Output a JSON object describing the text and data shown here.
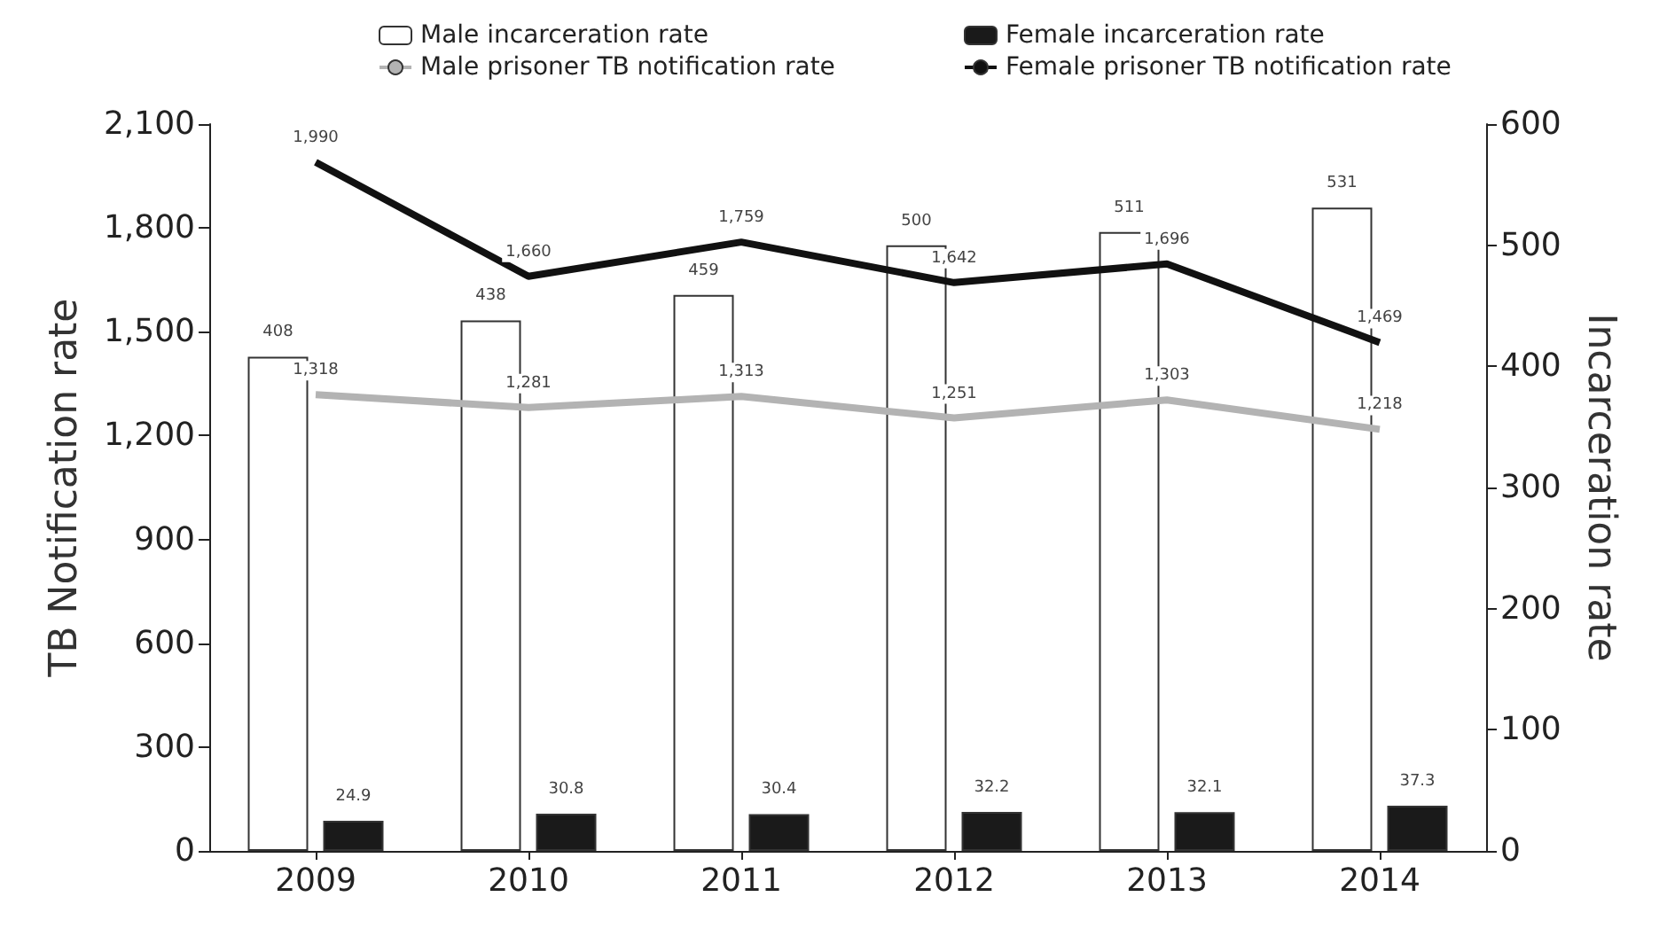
{
  "chart_data": {
    "type": "bar",
    "ylabel": "TB Notification rate",
    "y2label": "Incarceration rate",
    "categories": [
      "2009",
      "2010",
      "2011",
      "2012",
      "2013",
      "2014"
    ],
    "series": [
      {
        "name": "Male incarceration rate",
        "axis": "y2",
        "color": "#ffffff",
        "values": [
          408,
          438,
          459,
          500,
          511,
          531
        ]
      },
      {
        "name": "Female incarceration rate",
        "axis": "y2",
        "color": "#1a1a1a",
        "values": [
          24.9,
          30.8,
          30.4,
          32.2,
          32.1,
          37.3
        ]
      },
      {
        "name": "Male prisoner TB notification rate",
        "type": "line",
        "color": "#b3b3b3",
        "values": [
          1318,
          1281,
          1313,
          1251,
          1303,
          1218
        ],
        "value_labels": [
          "1,318",
          "1,281",
          "1,313",
          "1,251",
          "1,303",
          "1,218"
        ]
      },
      {
        "name": "Female prisoner TB notification rate",
        "type": "line",
        "color": "#111111",
        "values": [
          1990,
          1660,
          1759,
          1642,
          1696,
          1469
        ],
        "value_labels": [
          "1,990",
          "1,660",
          "1,759",
          "1,642",
          "1,696",
          "1,469"
        ]
      }
    ],
    "ylim": [
      0,
      2100
    ],
    "yticks": [
      0,
      300,
      600,
      900,
      {
        "value": 1200,
        "label": "1,200"
      },
      {
        "value": 1500,
        "label": "1,500"
      },
      {
        "value": 1800,
        "label": "1,800"
      },
      {
        "value": 2100,
        "label": "2,100"
      }
    ],
    "y2lim": [
      0,
      600
    ],
    "y2ticks": [
      0,
      100,
      200,
      300,
      400,
      500,
      600
    ],
    "data_labels": true,
    "grid": false,
    "legend": "top",
    "marker": "none",
    "line_style": "solid"
  }
}
